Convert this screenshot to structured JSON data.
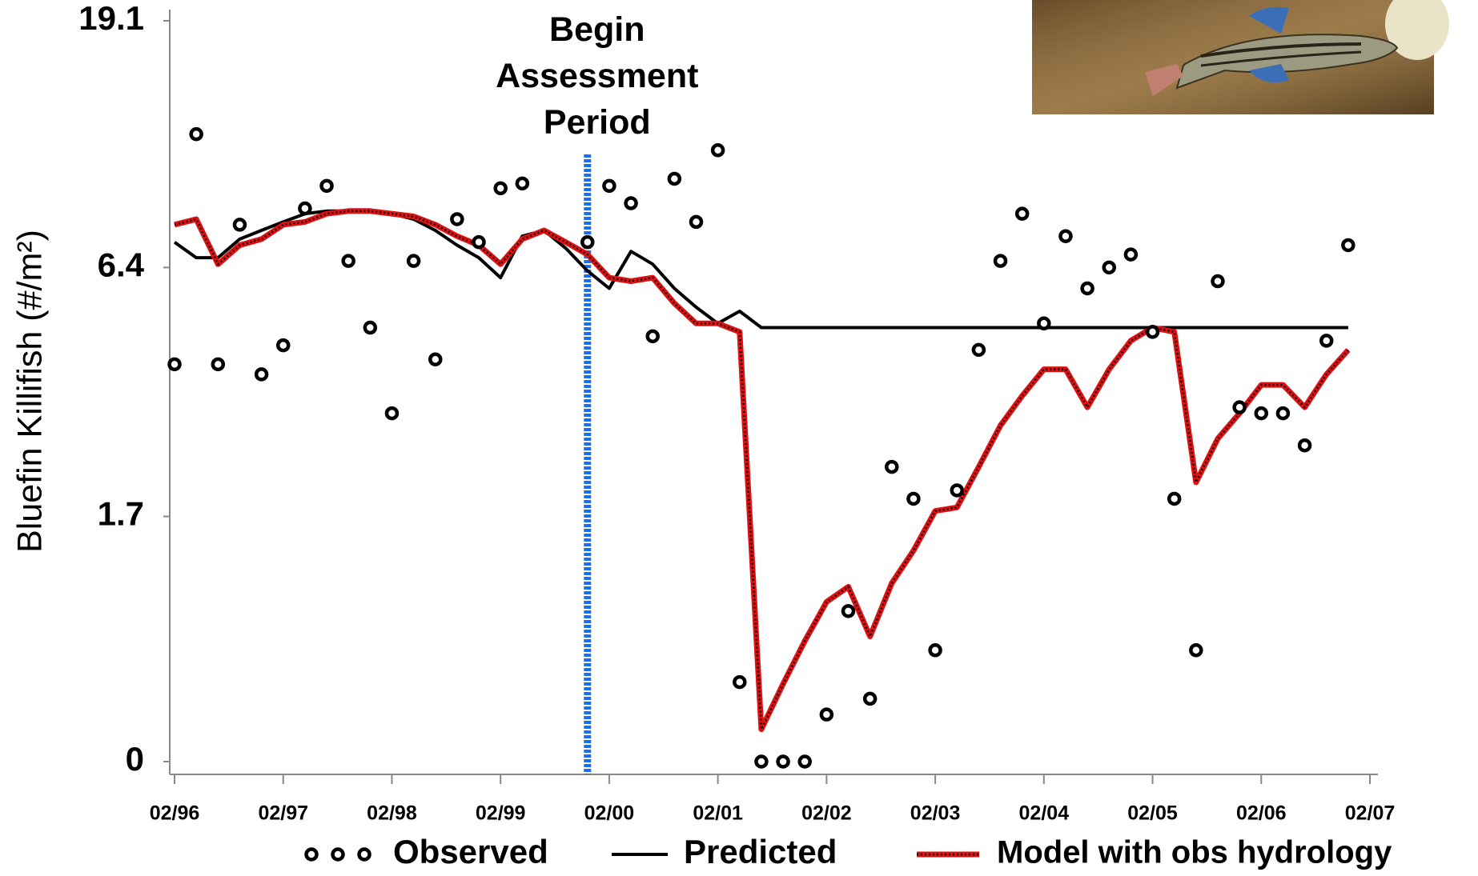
{
  "chart_data": {
    "type": "line",
    "ylabel": "Bluefin Killifish (#/m²)",
    "yscale": "log1p",
    "ylim": [
      0,
      19.1
    ],
    "yticks": [
      0,
      1.7,
      6.4,
      19.1
    ],
    "xlim": [
      1996.08,
      2007.08
    ],
    "xticks": [
      {
        "value": 1996.08,
        "label": "02/96"
      },
      {
        "value": 1997.08,
        "label": "02/97"
      },
      {
        "value": 1998.08,
        "label": "02/98"
      },
      {
        "value": 1999.08,
        "label": "02/99"
      },
      {
        "value": 2000.08,
        "label": "02/00"
      },
      {
        "value": 2001.08,
        "label": "02/01"
      },
      {
        "value": 2002.08,
        "label": "02/02"
      },
      {
        "value": 2003.08,
        "label": "02/03"
      },
      {
        "value": 2004.08,
        "label": "02/04"
      },
      {
        "value": 2005.08,
        "label": "02/05"
      },
      {
        "value": 2006.08,
        "label": "02/06"
      },
      {
        "value": 2007.08,
        "label": "02/07"
      }
    ],
    "annotation": {
      "text": "Begin Assessment Period",
      "x": 1999.88,
      "color": "#1a6cff"
    },
    "x": [
      1996.08,
      1996.28,
      1996.48,
      1996.68,
      1996.88,
      1997.08,
      1997.28,
      1997.48,
      1997.68,
      1997.88,
      1998.08,
      1998.28,
      1998.48,
      1998.68,
      1998.88,
      1999.08,
      1999.28,
      1999.48,
      1999.68,
      1999.88,
      2000.08,
      2000.28,
      2000.48,
      2000.68,
      2000.88,
      2001.08,
      2001.28,
      2001.48,
      2001.68,
      2001.88,
      2002.08,
      2002.28,
      2002.48,
      2002.68,
      2002.88,
      2003.08,
      2003.28,
      2003.48,
      2003.68,
      2003.88,
      2004.08,
      2004.28,
      2004.48,
      2004.68,
      2004.88,
      2005.08,
      2005.28,
      2005.48,
      2005.68,
      2005.88,
      2006.08,
      2006.28,
      2006.48,
      2006.68,
      2006.88
    ],
    "series": [
      {
        "name": "Observed",
        "color": "#000000",
        "mode": "markers",
        "values": [
          4.0,
          11.7,
          4.0,
          7.8,
          3.8,
          4.4,
          8.4,
          9.3,
          6.6,
          4.8,
          3.1,
          6.6,
          4.1,
          8.0,
          7.2,
          9.2,
          9.4,
          null,
          null,
          7.2,
          9.3,
          8.6,
          4.6,
          9.6,
          7.9,
          10.9,
          0.38,
          0,
          0,
          0,
          0.21,
          0.84,
          0.29,
          2.3,
          1.9,
          0.57,
          2.0,
          4.3,
          6.6,
          8.2,
          4.9,
          7.4,
          5.8,
          6.4,
          6.8,
          4.7,
          1.9,
          0.57,
          6.0,
          3.2,
          3.1,
          3.1,
          2.6,
          4.5,
          7.1
        ]
      },
      {
        "name": "Predicted",
        "color": "#000000",
        "mode": "lines",
        "values": [
          7.2,
          6.7,
          6.7,
          7.3,
          7.6,
          7.9,
          8.2,
          8.3,
          8.3,
          8.3,
          8.2,
          8.0,
          7.6,
          7.1,
          6.7,
          6.1,
          7.4,
          7.6,
          7.0,
          6.3,
          5.8,
          6.9,
          6.5,
          5.8,
          5.3,
          4.9,
          5.2,
          4.8,
          4.8,
          4.8,
          4.8,
          4.8,
          4.8,
          4.8,
          4.8,
          4.8,
          4.8,
          4.8,
          4.8,
          4.8,
          4.8,
          4.8,
          4.8,
          4.8,
          4.8,
          4.8,
          4.8,
          4.8,
          4.8,
          4.8,
          4.8,
          4.8,
          4.8,
          4.8,
          4.8
        ]
      },
      {
        "name": "Model with obs hydrology",
        "color": "#e01010",
        "mode": "dotted-lines",
        "values": [
          7.8,
          8.0,
          6.5,
          7.1,
          7.3,
          7.8,
          7.9,
          8.2,
          8.3,
          8.3,
          8.2,
          8.1,
          7.8,
          7.4,
          7.1,
          6.5,
          7.3,
          7.6,
          7.2,
          6.8,
          6.1,
          6.0,
          6.1,
          5.4,
          4.9,
          4.9,
          4.7,
          0.14,
          0.37,
          0.63,
          0.91,
          1.03,
          0.66,
          1.06,
          1.35,
          1.76,
          1.8,
          2.3,
          2.9,
          3.4,
          3.9,
          3.9,
          3.2,
          3.9,
          4.5,
          4.8,
          4.7,
          2.1,
          2.7,
          3.1,
          3.6,
          3.6,
          3.2,
          3.8,
          4.3
        ]
      }
    ]
  }
}
